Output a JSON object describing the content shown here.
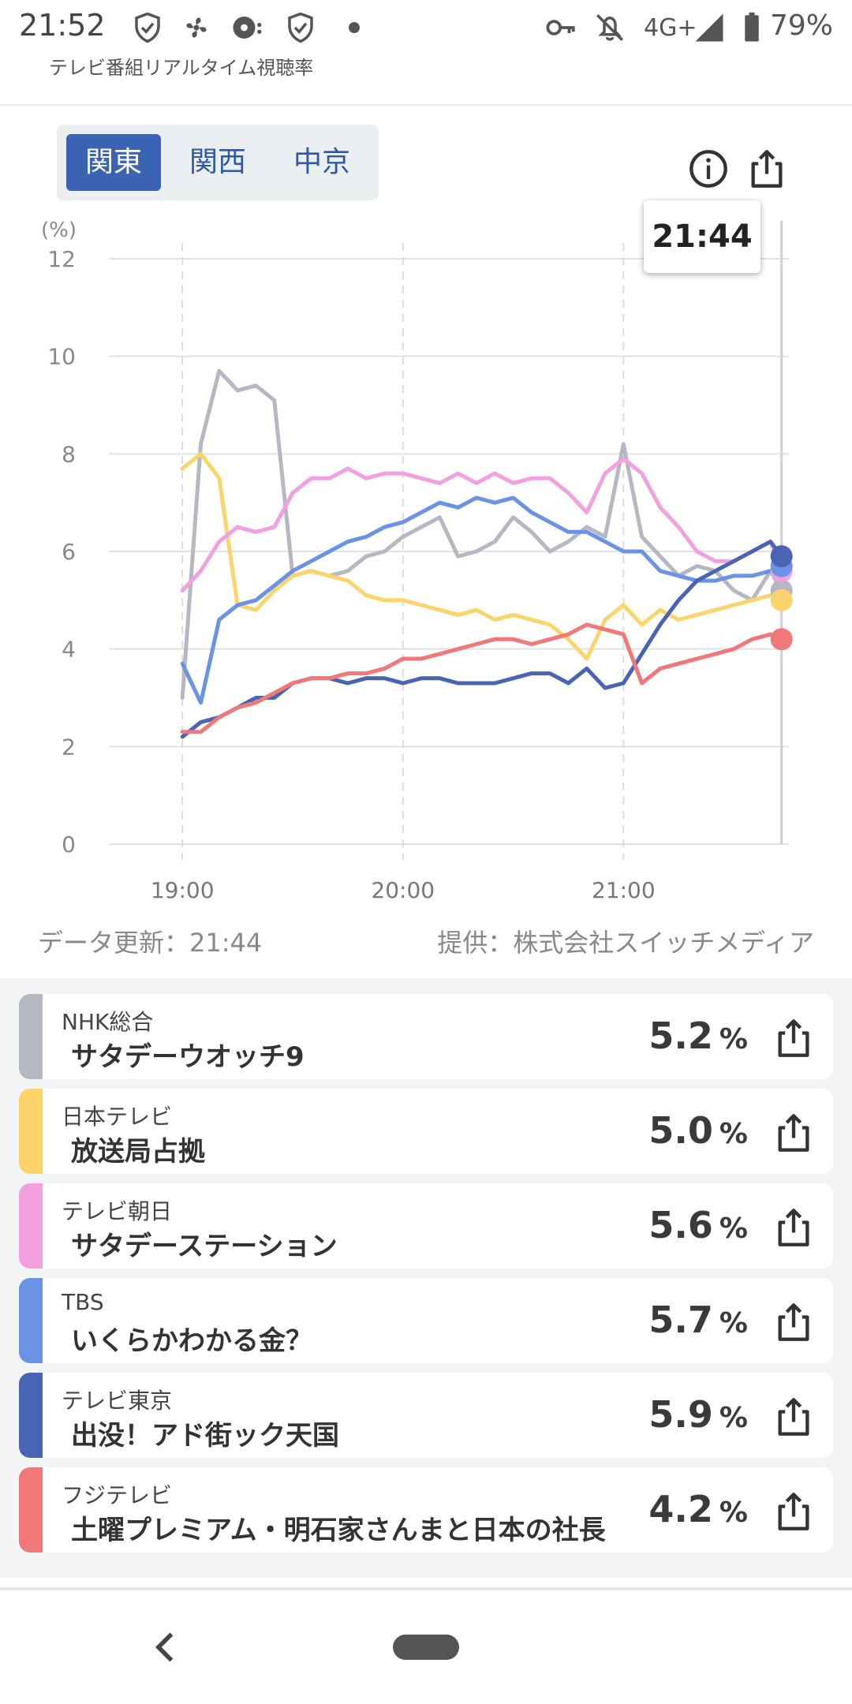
{
  "status_bar": {
    "time": "21:52",
    "network": "4G+",
    "battery": "79%",
    "icons": [
      "shield-check-icon",
      "fan-icon",
      "media-icon",
      "shield-check-icon",
      "dot-icon",
      "key-icon",
      "bell-off-icon",
      "signal-icon",
      "battery-icon"
    ]
  },
  "app": {
    "title": "テレビ番組リアルタイム視聴率"
  },
  "region_tabs": [
    {
      "label": "関東",
      "active": true
    },
    {
      "label": "関西",
      "active": false
    },
    {
      "label": "中京",
      "active": false
    }
  ],
  "toolbar_icons": [
    "info-icon",
    "share-icon"
  ],
  "tooltip_time": "21:44",
  "chart_data": {
    "type": "line",
    "ylabel": "(%)",
    "ylim": [
      0,
      12
    ],
    "yticks": [
      "0",
      "2",
      "4",
      "6",
      "8",
      "10",
      "12"
    ],
    "xticks": [
      "19:00",
      "20:00",
      "21:00"
    ],
    "x_minutes": [
      0,
      5,
      10,
      15,
      20,
      25,
      30,
      35,
      40,
      45,
      50,
      55,
      60,
      65,
      70,
      75,
      80,
      85,
      90,
      95,
      100,
      105,
      110,
      115,
      120,
      125,
      130,
      135,
      140,
      145,
      150,
      155,
      160,
      163
    ],
    "current_marker_minute": 163,
    "series": [
      {
        "name": "NHK総合",
        "color": "#b3b8c2",
        "values": [
          3.0,
          8.2,
          9.7,
          9.3,
          9.4,
          9.1,
          5.5,
          5.6,
          5.5,
          5.6,
          5.9,
          6.0,
          6.3,
          6.5,
          6.7,
          5.9,
          6.0,
          6.2,
          6.7,
          6.4,
          6.0,
          6.2,
          6.5,
          6.3,
          8.2,
          6.3,
          5.9,
          5.5,
          5.7,
          5.6,
          5.2,
          5.0,
          5.6,
          5.2
        ]
      },
      {
        "name": "日本テレビ",
        "color": "#fbd56b",
        "values": [
          7.7,
          8.0,
          7.5,
          4.9,
          4.8,
          5.2,
          5.5,
          5.6,
          5.5,
          5.4,
          5.1,
          5.0,
          5.0,
          4.9,
          4.8,
          4.7,
          4.8,
          4.6,
          4.7,
          4.6,
          4.5,
          4.2,
          3.8,
          4.6,
          4.9,
          4.5,
          4.8,
          4.6,
          4.7,
          4.8,
          4.9,
          5.0,
          5.1,
          5.0
        ]
      },
      {
        "name": "テレビ朝日",
        "color": "#f2a0e0",
        "values": [
          5.2,
          5.6,
          6.2,
          6.5,
          6.4,
          6.5,
          7.2,
          7.5,
          7.5,
          7.7,
          7.5,
          7.6,
          7.6,
          7.5,
          7.4,
          7.6,
          7.4,
          7.6,
          7.4,
          7.5,
          7.5,
          7.2,
          6.8,
          7.6,
          7.9,
          7.6,
          6.9,
          6.5,
          6.0,
          5.8,
          5.8,
          6.0,
          6.2,
          5.6
        ]
      },
      {
        "name": "TBS",
        "color": "#6a93e6",
        "values": [
          3.7,
          2.9,
          4.6,
          4.9,
          5.0,
          5.3,
          5.6,
          5.8,
          6.0,
          6.2,
          6.3,
          6.5,
          6.6,
          6.8,
          7.0,
          6.9,
          7.1,
          7.0,
          7.1,
          6.8,
          6.6,
          6.4,
          6.4,
          6.2,
          6.0,
          6.0,
          5.6,
          5.5,
          5.4,
          5.4,
          5.5,
          5.5,
          5.6,
          5.7
        ]
      },
      {
        "name": "テレビ東京",
        "color": "#4a64b4",
        "values": [
          2.2,
          2.5,
          2.6,
          2.8,
          3.0,
          3.0,
          3.3,
          3.4,
          3.4,
          3.3,
          3.4,
          3.4,
          3.3,
          3.4,
          3.4,
          3.3,
          3.3,
          3.3,
          3.4,
          3.5,
          3.5,
          3.3,
          3.6,
          3.2,
          3.3,
          3.9,
          4.5,
          5.0,
          5.4,
          5.6,
          5.8,
          6.0,
          6.2,
          5.9
        ]
      },
      {
        "name": "フジテレビ",
        "color": "#f07878",
        "values": [
          2.3,
          2.3,
          2.6,
          2.8,
          2.9,
          3.1,
          3.3,
          3.4,
          3.4,
          3.5,
          3.5,
          3.6,
          3.8,
          3.8,
          3.9,
          4.0,
          4.1,
          4.2,
          4.2,
          4.1,
          4.2,
          4.3,
          4.5,
          4.4,
          4.3,
          3.3,
          3.6,
          3.7,
          3.8,
          3.9,
          4.0,
          4.2,
          4.3,
          4.2
        ]
      }
    ]
  },
  "data_update": "データ更新：21:44",
  "provider": "提供：株式会社スイッチメディア",
  "programs": [
    {
      "channel": "NHK総合",
      "program": "サタデーウオッチ9",
      "rating": "5.2",
      "unit": "%",
      "color": "#b3b8c2"
    },
    {
      "channel": "日本テレビ",
      "program": "放送局占拠",
      "rating": "5.0",
      "unit": "%",
      "color": "#fbd56b"
    },
    {
      "channel": "テレビ朝日",
      "program": "サタデーステーション",
      "rating": "5.6",
      "unit": "%",
      "color": "#f2a0e0"
    },
    {
      "channel": "TBS",
      "program": "いくらかわかる金？",
      "rating": "5.7",
      "unit": "%",
      "color": "#6a93e6"
    },
    {
      "channel": "テレビ東京",
      "program": "出没！アド街ック天国",
      "rating": "5.9",
      "unit": "%",
      "color": "#4a64b4"
    },
    {
      "channel": "フジテレビ",
      "program": "土曜プレミアム・明石家さんまと日本の社長",
      "rating": "4.2",
      "unit": "%",
      "color": "#f07878"
    }
  ]
}
